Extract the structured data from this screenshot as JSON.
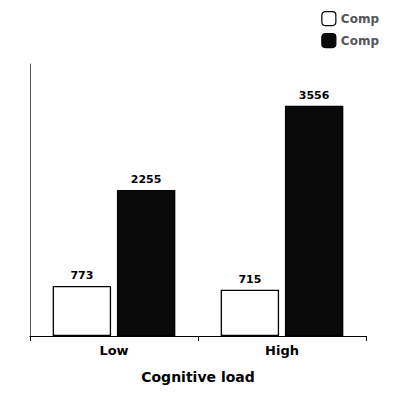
{
  "chart_data": {
    "type": "bar",
    "categories": [
      "Low",
      "High"
    ],
    "series": [
      {
        "name": "Comp",
        "color": "#ffffff",
        "values": [
          773,
          715
        ]
      },
      {
        "name": "Comp",
        "color": "#0a0a0a",
        "values": [
          2255,
          3556
        ]
      }
    ],
    "xlabel": "Cognitive load",
    "ylim": [
      0,
      4200
    ],
    "grid": false,
    "legend": "upper right",
    "data_labels": true,
    "tick_labels": "x"
  }
}
